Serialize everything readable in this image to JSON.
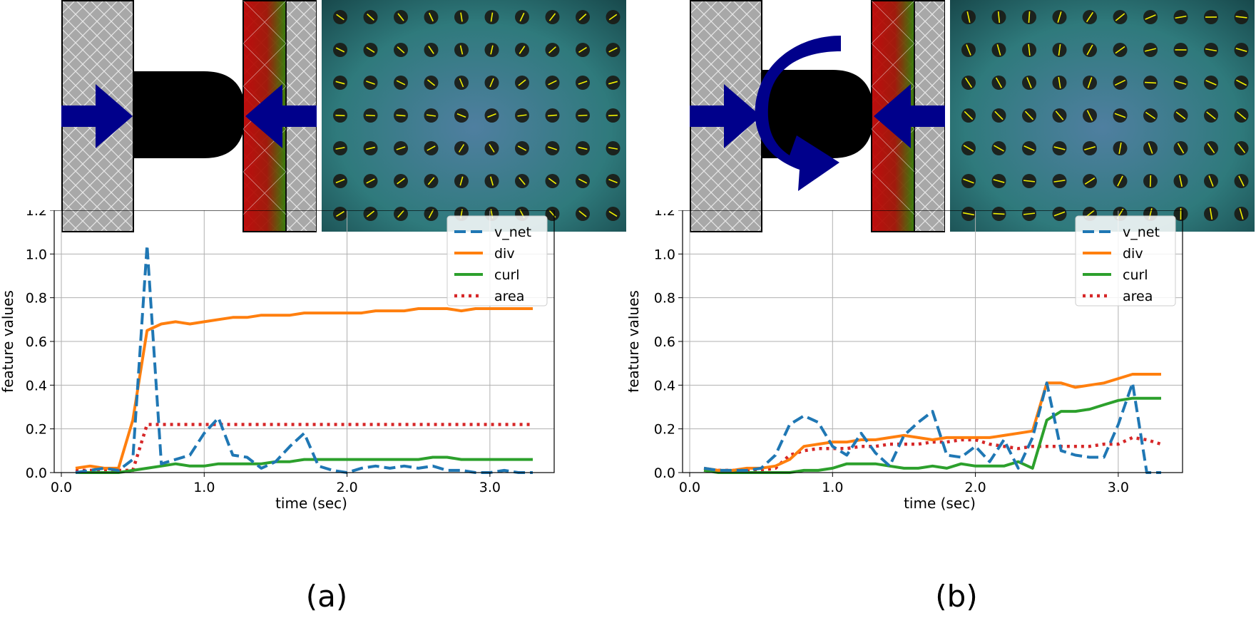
{
  "captions": {
    "a": "(a)",
    "b": "(b)"
  },
  "colors": {
    "arrow": "#00008b",
    "holder": "#a8a8a8",
    "object": "#000000",
    "v_net": "#1f77b4",
    "div": "#ff7f0e",
    "curl": "#2ca02c",
    "area": "#d62728"
  },
  "chart_data": [
    {
      "type": "line",
      "title": "",
      "xlabel": "time (sec)",
      "ylabel": "feature values",
      "xlim": [
        -0.05,
        3.45
      ],
      "ylim": [
        0.0,
        1.2
      ],
      "xticks": [
        0.0,
        1.0,
        2.0,
        3.0
      ],
      "xtick_labels": [
        "0.0",
        "1.0",
        "2.0",
        "3.0"
      ],
      "yticks": [
        0.0,
        0.2,
        0.4,
        0.6,
        0.8,
        1.0,
        1.2
      ],
      "ytick_labels": [
        "0.0",
        "0.2",
        "0.4",
        "0.6",
        "0.8",
        "1.0",
        "1.2"
      ],
      "grid": true,
      "legend": "top-right",
      "x": [
        0.1,
        0.2,
        0.3,
        0.4,
        0.5,
        0.6,
        0.7,
        0.8,
        0.9,
        1.0,
        1.1,
        1.2,
        1.3,
        1.4,
        1.5,
        1.6,
        1.7,
        1.8,
        1.9,
        2.0,
        2.1,
        2.2,
        2.3,
        2.4,
        2.5,
        2.6,
        2.7,
        2.8,
        2.9,
        3.0,
        3.1,
        3.2,
        3.3
      ],
      "series": [
        {
          "name": "v_net",
          "style": "dashed",
          "values": [
            0.0,
            0.01,
            0.02,
            0.01,
            0.06,
            1.04,
            0.04,
            0.06,
            0.08,
            0.18,
            0.25,
            0.08,
            0.07,
            0.02,
            0.05,
            0.12,
            0.18,
            0.03,
            0.01,
            0.0,
            0.02,
            0.03,
            0.02,
            0.03,
            0.02,
            0.03,
            0.01,
            0.01,
            0.0,
            0.0,
            0.01,
            0.0,
            0.0
          ]
        },
        {
          "name": "div",
          "style": "solid",
          "values": [
            0.02,
            0.03,
            0.02,
            0.02,
            0.24,
            0.65,
            0.68,
            0.69,
            0.68,
            0.69,
            0.7,
            0.71,
            0.71,
            0.72,
            0.72,
            0.72,
            0.73,
            0.73,
            0.73,
            0.73,
            0.73,
            0.74,
            0.74,
            0.74,
            0.75,
            0.75,
            0.75,
            0.74,
            0.75,
            0.75,
            0.75,
            0.75,
            0.75
          ]
        },
        {
          "name": "curl",
          "style": "solid",
          "values": [
            0.0,
            0.0,
            0.0,
            0.0,
            0.01,
            0.02,
            0.03,
            0.04,
            0.03,
            0.03,
            0.04,
            0.04,
            0.04,
            0.04,
            0.05,
            0.05,
            0.06,
            0.06,
            0.06,
            0.06,
            0.06,
            0.06,
            0.06,
            0.06,
            0.06,
            0.07,
            0.07,
            0.06,
            0.06,
            0.06,
            0.06,
            0.06,
            0.06
          ]
        },
        {
          "name": "area",
          "style": "dotted",
          "values": [
            0.01,
            0.01,
            0.01,
            0.01,
            0.01,
            0.22,
            0.22,
            0.22,
            0.22,
            0.22,
            0.22,
            0.22,
            0.22,
            0.22,
            0.22,
            0.22,
            0.22,
            0.22,
            0.22,
            0.22,
            0.22,
            0.22,
            0.22,
            0.22,
            0.22,
            0.22,
            0.22,
            0.22,
            0.22,
            0.22,
            0.22,
            0.22,
            0.22
          ]
        }
      ]
    },
    {
      "type": "line",
      "title": "",
      "xlabel": "time (sec)",
      "ylabel": "feature values",
      "xlim": [
        -0.05,
        3.45
      ],
      "ylim": [
        0.0,
        1.2
      ],
      "xticks": [
        0.0,
        1.0,
        2.0,
        3.0
      ],
      "xtick_labels": [
        "0.0",
        "1.0",
        "2.0",
        "3.0"
      ],
      "yticks": [
        0.0,
        0.2,
        0.4,
        0.6,
        0.8,
        1.0,
        1.2
      ],
      "ytick_labels": [
        "0.0",
        "0.2",
        "0.4",
        "0.6",
        "0.8",
        "1.0",
        "1.2"
      ],
      "grid": true,
      "legend": "top-right",
      "x": [
        0.1,
        0.2,
        0.3,
        0.4,
        0.5,
        0.6,
        0.7,
        0.8,
        0.9,
        1.0,
        1.1,
        1.2,
        1.3,
        1.4,
        1.5,
        1.6,
        1.7,
        1.8,
        1.9,
        2.0,
        2.1,
        2.2,
        2.3,
        2.4,
        2.5,
        2.6,
        2.7,
        2.8,
        2.9,
        3.0,
        3.1,
        3.2,
        3.3
      ],
      "series": [
        {
          "name": "v_net",
          "style": "dashed",
          "values": [
            0.02,
            0.01,
            0.01,
            0.01,
            0.02,
            0.08,
            0.22,
            0.26,
            0.23,
            0.12,
            0.08,
            0.18,
            0.09,
            0.03,
            0.17,
            0.23,
            0.28,
            0.08,
            0.07,
            0.12,
            0.05,
            0.15,
            0.02,
            0.16,
            0.41,
            0.1,
            0.08,
            0.07,
            0.07,
            0.22,
            0.41,
            0.0,
            0.0
          ]
        },
        {
          "name": "div",
          "style": "solid",
          "values": [
            0.02,
            0.01,
            0.01,
            0.02,
            0.02,
            0.03,
            0.06,
            0.12,
            0.13,
            0.14,
            0.14,
            0.15,
            0.15,
            0.16,
            0.17,
            0.16,
            0.15,
            0.16,
            0.16,
            0.16,
            0.16,
            0.17,
            0.18,
            0.19,
            0.41,
            0.41,
            0.39,
            0.4,
            0.41,
            0.43,
            0.45,
            0.45,
            0.45
          ]
        },
        {
          "name": "curl",
          "style": "solid",
          "values": [
            0.01,
            0.0,
            0.0,
            0.0,
            0.0,
            0.0,
            0.0,
            0.01,
            0.01,
            0.02,
            0.04,
            0.04,
            0.04,
            0.03,
            0.02,
            0.02,
            0.03,
            0.02,
            0.04,
            0.03,
            0.03,
            0.03,
            0.05,
            0.02,
            0.24,
            0.28,
            0.28,
            0.29,
            0.31,
            0.33,
            0.34,
            0.34,
            0.34
          ]
        },
        {
          "name": "area",
          "style": "dotted",
          "values": [
            0.01,
            0.01,
            0.01,
            0.01,
            0.01,
            0.02,
            0.08,
            0.1,
            0.11,
            0.11,
            0.11,
            0.12,
            0.12,
            0.13,
            0.13,
            0.13,
            0.14,
            0.14,
            0.15,
            0.15,
            0.13,
            0.12,
            0.11,
            0.12,
            0.12,
            0.12,
            0.12,
            0.12,
            0.13,
            0.13,
            0.16,
            0.15,
            0.13
          ]
        }
      ]
    }
  ]
}
